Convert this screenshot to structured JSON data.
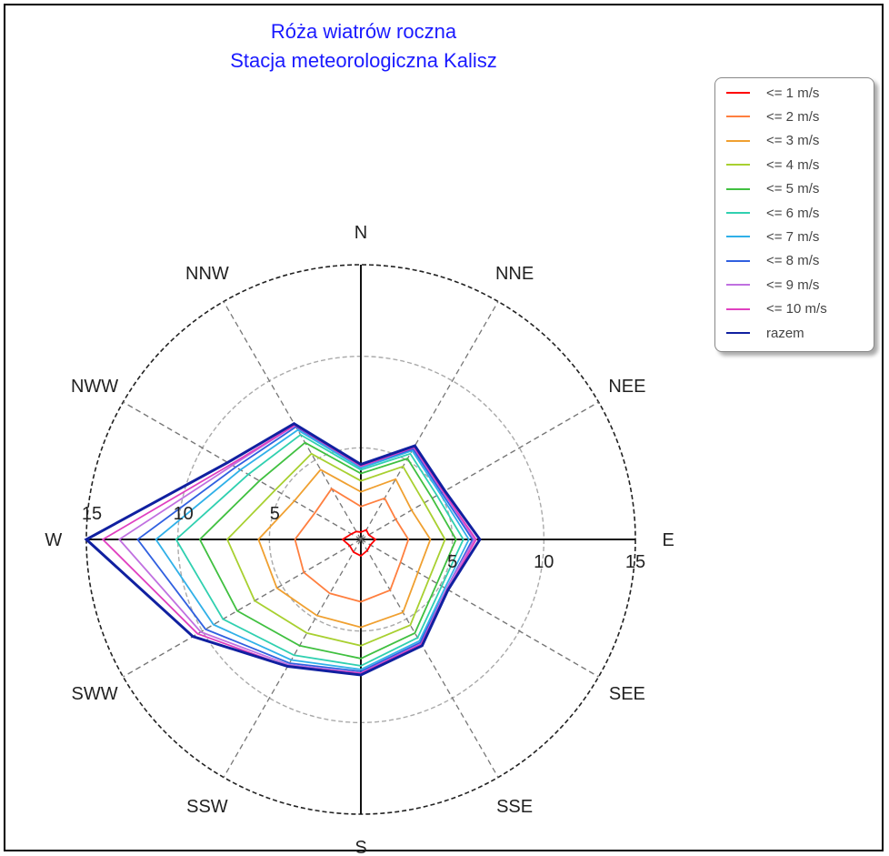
{
  "title_line1": "Róża wiatrów roczna",
  "title_line2": "Stacja meteorologiczna Kalisz",
  "chart_data": {
    "type": "radar",
    "title": "Róża wiatrów roczna",
    "subtitle": "Stacja meteorologiczna Kalisz",
    "directions": [
      "N",
      "NNE",
      "NEE",
      "E",
      "SEE",
      "SSE",
      "S",
      "SSW",
      "SWW",
      "W",
      "NWW",
      "NNW"
    ],
    "radial_range": [
      0,
      15
    ],
    "radial_ticks": [
      "5",
      "10",
      "15"
    ],
    "grid": true,
    "legend_position": "top-right",
    "series": [
      {
        "name": "<= 1 m/s",
        "color": "#ff0000",
        "values": [
          0.4,
          0.6,
          0.5,
          0.8,
          0.6,
          0.7,
          0.9,
          0.8,
          0.7,
          1.0,
          0.6,
          0.5
        ]
      },
      {
        "name": "<= 2 m/s",
        "color": "#ff7f3f",
        "values": [
          1.8,
          2.6,
          2.2,
          2.6,
          2.5,
          3.2,
          3.4,
          3.4,
          3.6,
          3.6,
          2.9,
          3.2
        ]
      },
      {
        "name": "<= 3 m/s",
        "color": "#f0a030",
        "values": [
          2.6,
          3.8,
          3.2,
          3.8,
          3.6,
          4.6,
          4.8,
          4.8,
          5.3,
          5.6,
          4.2,
          4.4
        ]
      },
      {
        "name": "<= 4 m/s",
        "color": "#a8d030",
        "values": [
          3.2,
          4.6,
          4.0,
          4.6,
          4.3,
          5.4,
          5.8,
          5.9,
          6.7,
          7.3,
          5.4,
          5.4
        ]
      },
      {
        "name": "<= 5 m/s",
        "color": "#40c040",
        "values": [
          3.6,
          5.1,
          4.5,
          5.2,
          4.8,
          5.9,
          6.5,
          6.7,
          7.8,
          8.8,
          6.4,
          6.1
        ]
      },
      {
        "name": "<= 6 m/s",
        "color": "#30d0b0",
        "values": [
          3.8,
          5.4,
          4.8,
          5.6,
          5.1,
          6.2,
          6.9,
          7.3,
          8.7,
          10.1,
          7.1,
          6.6
        ]
      },
      {
        "name": "<= 7 m/s",
        "color": "#30b0e8",
        "values": [
          3.9,
          5.6,
          5.0,
          5.9,
          5.3,
          6.4,
          7.1,
          7.6,
          9.3,
          11.2,
          7.6,
          6.9
        ]
      },
      {
        "name": "<= 8 m/s",
        "color": "#3060e0",
        "values": [
          4.0,
          5.7,
          5.1,
          6.1,
          5.4,
          6.5,
          7.2,
          7.8,
          9.8,
          12.2,
          7.9,
          7.1
        ]
      },
      {
        "name": "<= 9 m/s",
        "color": "#c070e0",
        "values": [
          4.0,
          5.8,
          5.2,
          6.2,
          5.4,
          6.6,
          7.3,
          7.9,
          10.1,
          13.2,
          8.1,
          7.2
        ]
      },
      {
        "name": "<= 10 m/s",
        "color": "#e040c0",
        "values": [
          4.0,
          5.8,
          5.2,
          6.3,
          5.5,
          6.6,
          7.3,
          8.0,
          10.3,
          14.1,
          8.2,
          7.2
        ]
      },
      {
        "name": "razem",
        "color": "#1020a0",
        "values": [
          4.1,
          5.9,
          5.3,
          6.5,
          5.5,
          6.7,
          7.4,
          8.0,
          10.6,
          15.0,
          8.4,
          7.3
        ]
      }
    ]
  }
}
